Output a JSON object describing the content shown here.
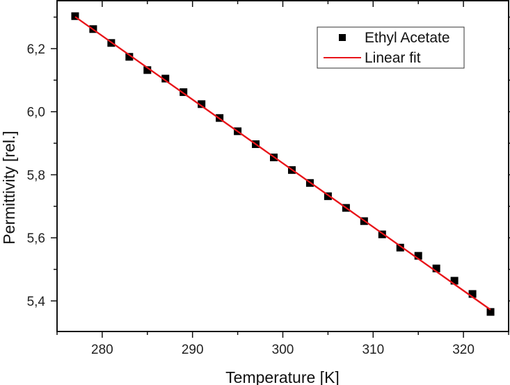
{
  "chart_data": {
    "type": "scatter",
    "title": "",
    "xlabel": "Temperature [K]",
    "ylabel": "Permittivity [rel.]",
    "xlim": [
      275,
      325
    ],
    "ylim": [
      5.303,
      6.352
    ],
    "xticks": [
      280,
      290,
      300,
      310,
      320
    ],
    "xtick_labels": [
      "280",
      "290",
      "300",
      "310",
      "320"
    ],
    "yticks": [
      5.4,
      5.6,
      5.8,
      6.0,
      6.2
    ],
    "ytick_labels": [
      "5,4",
      "5,6",
      "5,8",
      "6,0",
      "6,2"
    ],
    "grid": false,
    "legend_position": "upper right",
    "series": [
      {
        "name": "Ethyl Acetate",
        "kind": "scatter",
        "marker": "square",
        "color": "#000000",
        "x": [
          277,
          279,
          281,
          283,
          285,
          287,
          289,
          291,
          293,
          295,
          297,
          299,
          301,
          303,
          305,
          307,
          309,
          311,
          313,
          315,
          317,
          319,
          321,
          323
        ],
        "y": [
          6.303,
          6.262,
          6.218,
          6.174,
          6.132,
          6.105,
          6.062,
          6.024,
          5.98,
          5.938,
          5.897,
          5.855,
          5.815,
          5.774,
          5.732,
          5.695,
          5.653,
          5.611,
          5.569,
          5.543,
          5.503,
          5.464,
          5.422,
          5.365
        ]
      },
      {
        "name": "Linear fit",
        "kind": "line",
        "color": "#e8141a",
        "x": [
          277,
          323
        ],
        "y": [
          6.301,
          5.372
        ]
      }
    ]
  },
  "legend": {
    "items": [
      {
        "label": "Ethyl Acetate"
      },
      {
        "label": "Linear fit"
      }
    ]
  }
}
